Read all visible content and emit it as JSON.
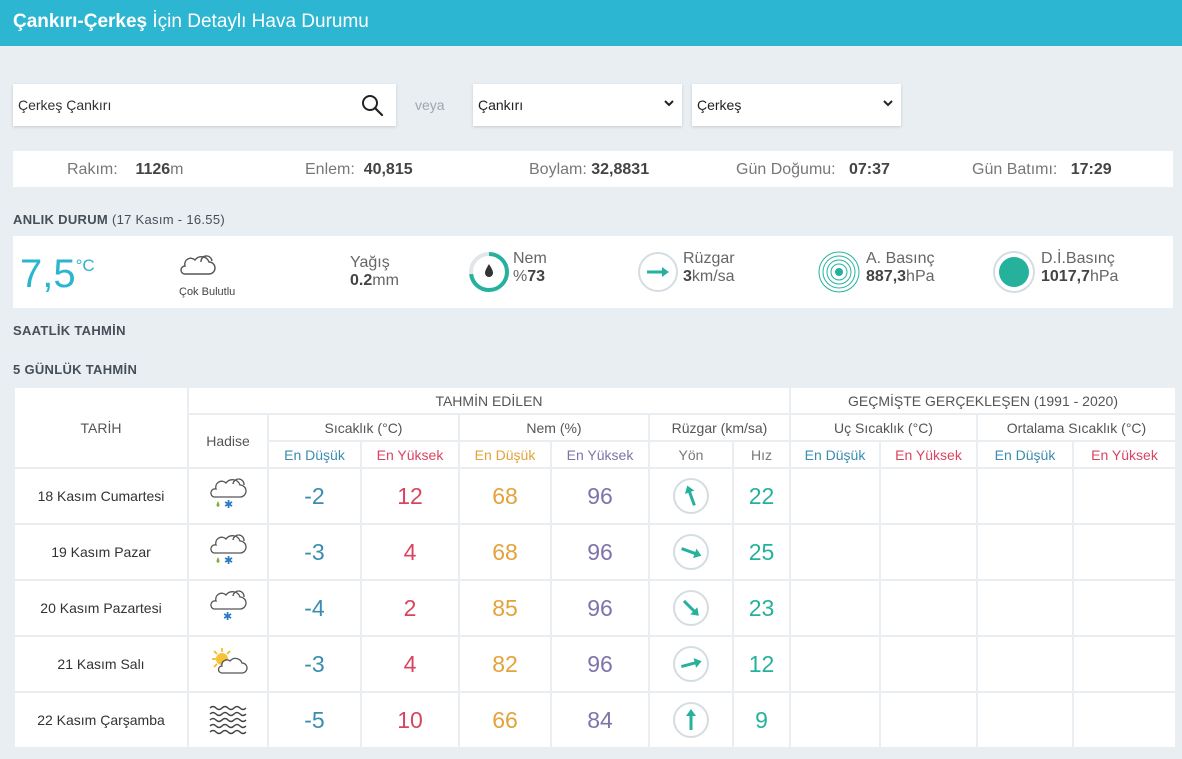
{
  "header": {
    "title_bold": "Çankırı-Çerkeş",
    "title_rest": " İçin Detaylı Hava Durumu"
  },
  "search": {
    "value": "Çerkeş Çankırı",
    "icon": "search-icon"
  },
  "veya": "veya",
  "province_select": {
    "selected": "Çankırı"
  },
  "district_select": {
    "selected": "Çerkeş"
  },
  "info": {
    "altitude_label": "Rakım:",
    "altitude_value": "1126",
    "altitude_unit": "m",
    "lat_label": "Enlem:",
    "lat_value": "40,815",
    "lon_label": "Boylam:",
    "lon_value": "32,8831",
    "sunrise_label": "Gün Doğumu:",
    "sunrise_value": "07:37",
    "sunset_label": "Gün Batımı:",
    "sunset_value": "17:29"
  },
  "current": {
    "section_title": "ANLIK DURUM",
    "section_sub": "(17 Kasım - 16.55)",
    "temp": "7,5",
    "temp_unit": "°C",
    "condition": "Çok Bulutlu",
    "precip_label": "Yağış",
    "precip_value": "0.2",
    "precip_unit": "mm",
    "humidity_label": "Nem",
    "humidity_prefix": "%",
    "humidity_value": "73",
    "humidity_level": 0.73,
    "wind_label": "Rüzgar",
    "wind_value": "3",
    "wind_unit": "km/sa",
    "pressure_label": "A. Basınç",
    "pressure_value": "887,3",
    "pressure_unit": "hPa",
    "sea_pressure_label": "D.İ.Basınç",
    "sea_pressure_value": "1017,7",
    "sea_pressure_unit": "hPa",
    "accent_color": "#2bb5cf",
    "teal_color": "#26b19d"
  },
  "hourly_title": "SAATLİK TAHMİN",
  "daily_title": "5 GÜNLÜK TAHMİN",
  "table": {
    "date_header": "TARİH",
    "forecast_header": "TAHMİN EDİLEN",
    "past_header": "GEÇMİŞTE GERÇEKLEŞEN (1991 - 2020)",
    "event_header": "Hadise",
    "temp_header": "Sıcaklık (°C)",
    "humidity_header": "Nem (%)",
    "wind_header": "Rüzgar (km/sa)",
    "extreme_header": "Uç Sıcaklık (°C)",
    "avg_header": "Ortalama Sıcaklık (°C)",
    "low": "En Düşük",
    "high": "En Yüksek",
    "direction": "Yön",
    "speed": "Hız",
    "rows": [
      {
        "date": "18 Kasım Cumartesi",
        "icon": "cloud-rain-snow-icon",
        "tmin": "-2",
        "tmax": "12",
        "hmin": "68",
        "hmax": "96",
        "wind_dir_deg": 340,
        "speed": "22"
      },
      {
        "date": "19 Kasım Pazar",
        "icon": "cloud-rain-snow-icon",
        "tmin": "-3",
        "tmax": "4",
        "hmin": "68",
        "hmax": "96",
        "wind_dir_deg": 110,
        "speed": "25"
      },
      {
        "date": "20 Kasım Pazartesi",
        "icon": "cloud-snow-icon",
        "tmin": "-4",
        "tmax": "2",
        "hmin": "85",
        "hmax": "96",
        "wind_dir_deg": 135,
        "speed": "23"
      },
      {
        "date": "21 Kasım Salı",
        "icon": "sun-cloud-icon",
        "tmin": "-3",
        "tmax": "4",
        "hmin": "82",
        "hmax": "96",
        "wind_dir_deg": 75,
        "speed": "12"
      },
      {
        "date": "22 Kasım Çarşamba",
        "icon": "fog-icon",
        "tmin": "-5",
        "tmax": "10",
        "hmin": "66",
        "hmax": "84",
        "wind_dir_deg": 0,
        "speed": "9"
      }
    ]
  }
}
